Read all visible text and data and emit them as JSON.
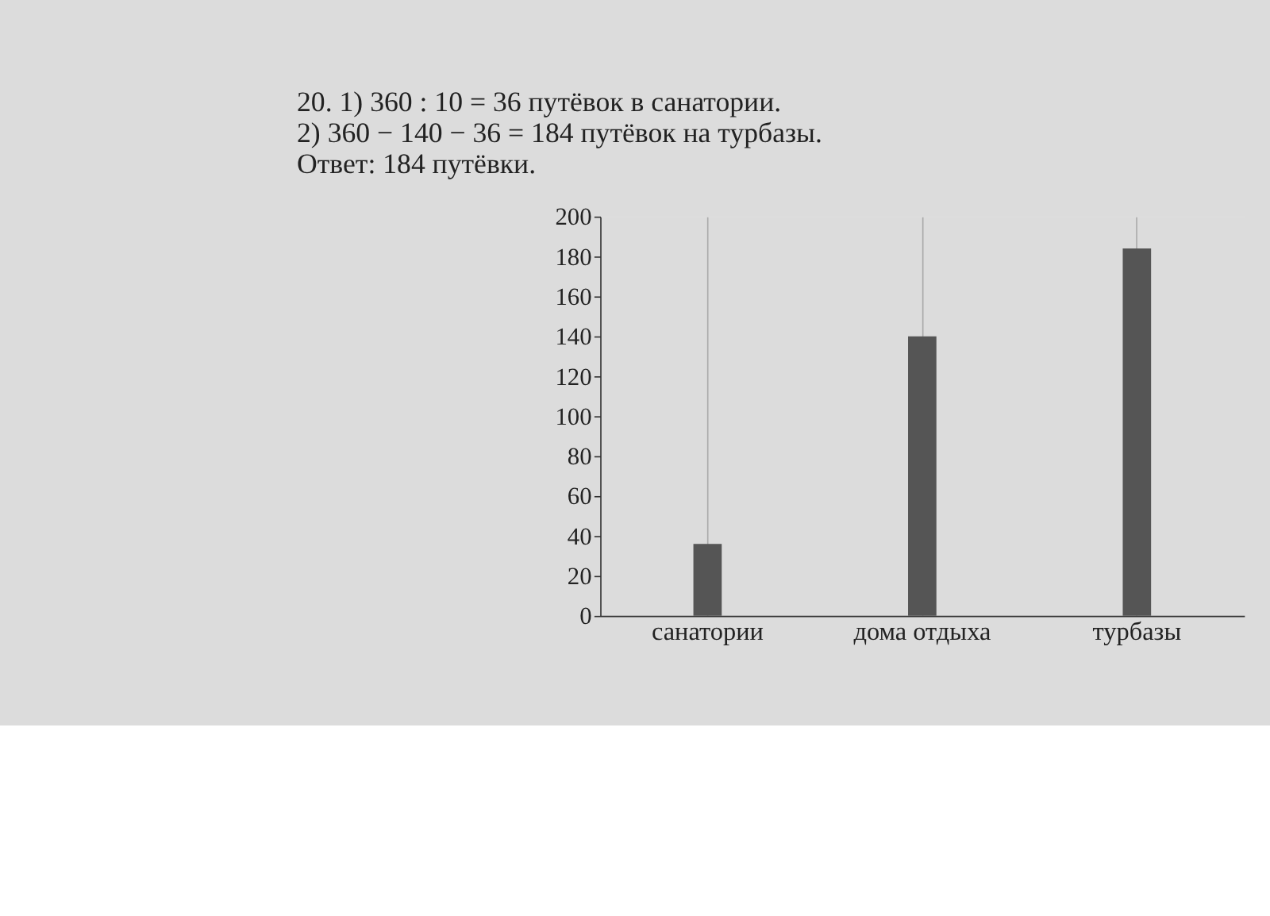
{
  "chart_data": {
    "type": "bar",
    "categories": [
      "санатории",
      "дома отдыха",
      "турбазы"
    ],
    "values": [
      36,
      140,
      184
    ],
    "color": "#555555",
    "ylim": [
      0,
      200
    ],
    "yticks": [
      0,
      20,
      40,
      60,
      80,
      100,
      120,
      140,
      160,
      180,
      200
    ],
    "grid": "x",
    "annotations": [
      "20.",
      "1) 360 : 10 = 36 путёвок в санатории.",
      "2) 360 − 140 − 36 = 184 путёвок на турбазы.",
      "Ответ: 184 путёвки."
    ]
  }
}
